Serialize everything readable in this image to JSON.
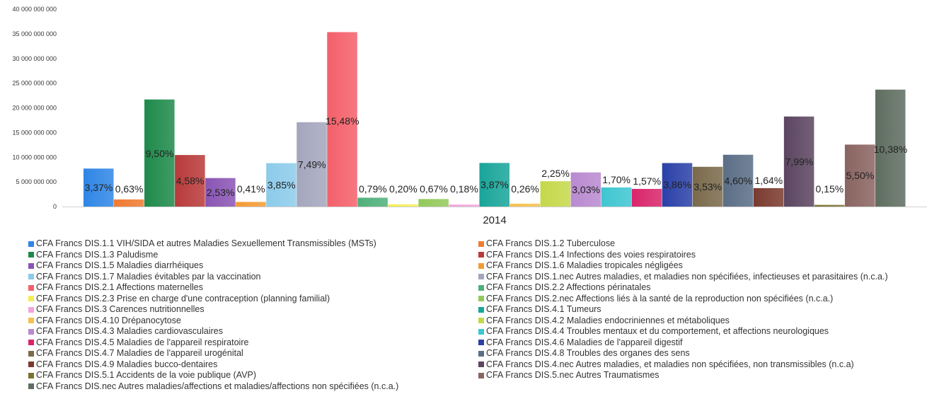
{
  "chart_data": {
    "type": "bar",
    "categories": [
      "2014"
    ],
    "ylim": [
      0,
      40000000000
    ],
    "yticks": [
      "0",
      "5 000 000 000",
      "10 000 000 000",
      "15 000 000 000",
      "20 000 000 000",
      "25 000 000 000",
      "30 000 000 000",
      "35 000 000 000",
      "40 000 000 000"
    ],
    "grid": false,
    "legend_position": "bottom",
    "series": [
      {
        "name": "CFA Francs DIS.1.1 VIH/SIDA et autres Maladies Sexuellement Transmissibles (MSTs)",
        "values": [
          7700000000
        ],
        "label": "3,37%",
        "color": "#2f86e6"
      },
      {
        "name": "CFA Francs DIS.1.2 Tuberculose",
        "values": [
          1450000000
        ],
        "label": "0,63%",
        "color": "#ef7b32"
      },
      {
        "name": "CFA Francs DIS.1.3 Paludisme",
        "values": [
          21700000000
        ],
        "label": "9,50%",
        "color": "#1e8a4a"
      },
      {
        "name": "CFA Francs DIS.1.4 Infections des voies respiratoires",
        "values": [
          10450000000
        ],
        "label": "4,58%",
        "color": "#b93a3a"
      },
      {
        "name": "CFA Francs DIS.1.5 Maladies diarrhéiques",
        "values": [
          5780000000
        ],
        "label": "2,53%",
        "color": "#8a55b4"
      },
      {
        "name": "CFA Francs DIS.1.6 Maladies tropicales négligées",
        "values": [
          940000000
        ],
        "label": "0,41%",
        "color": "#f29b35"
      },
      {
        "name": "CFA Francs DIS.1.7 Maladies évitables par la vaccination",
        "values": [
          8800000000
        ],
        "label": "3,85%",
        "color": "#8ccbea"
      },
      {
        "name": "CFA Francs DIS.1.nec Autres maladies, et maladies non spécifiées, infectieuses et parasitaires (n.c.a.)",
        "values": [
          17100000000
        ],
        "label": "7,49%",
        "color": "#a4a6bd"
      },
      {
        "name": "CFA Francs DIS.2.1 Affections maternelles",
        "values": [
          35350000000
        ],
        "label": "15,48%",
        "color": "#f4606a"
      },
      {
        "name": "CFA Francs DIS.2.2 Affections périnatales",
        "values": [
          1800000000
        ],
        "label": "0,79%",
        "color": "#4fb07a"
      },
      {
        "name": "CFA Francs DIS.2.3 Prise en charge d'une contraception (planning familial)",
        "values": [
          460000000
        ],
        "label": "0,20%",
        "color": "#f4ee55"
      },
      {
        "name": "CFA Francs DIS.2.nec Affections liés à la santé de la reproduction non spécifiées (n.c.a.)",
        "values": [
          1530000000
        ],
        "label": "0,67%",
        "color": "#94c95a"
      },
      {
        "name": "CFA Francs DIS.3 Carences nutritionnelles",
        "values": [
          410000000
        ],
        "label": "0,18%",
        "color": "#f4a3de"
      },
      {
        "name": "CFA Francs DIS.4.1 Tumeurs",
        "values": [
          8840000000
        ],
        "label": "3,87%",
        "color": "#19a59a"
      },
      {
        "name": "CFA Francs DIS.4.10 Drépanocytose",
        "values": [
          590000000
        ],
        "label": "0,26%",
        "color": "#f4c14e"
      },
      {
        "name": "CFA Francs DIS.4.2 Maladies endocriniennes et métaboliques",
        "values": [
          5140000000
        ],
        "label": "2,25%",
        "color": "#c5d84a"
      },
      {
        "name": "CFA Francs DIS.4.3 Maladies cardiovasculaires",
        "values": [
          6920000000
        ],
        "label": "3,03%",
        "color": "#b98ad0"
      },
      {
        "name": "CFA Francs DIS.4.4 Troubles mentaux et du comportement, et affections neurologiques",
        "values": [
          3880000000
        ],
        "label": "1,70%",
        "color": "#3ec6d1"
      },
      {
        "name": "CFA Francs DIS.4.5 Maladies de l'appareil respiratoire",
        "values": [
          3580000000
        ],
        "label": "1,57%",
        "color": "#d9246a"
      },
      {
        "name": "CFA Francs DIS.4.6 Maladies de l'appareil digestif",
        "values": [
          8820000000
        ],
        "label": "3,86%",
        "color": "#2a40a8"
      },
      {
        "name": "CFA Francs DIS.4.7 Maladies de l'appareil urogénital",
        "values": [
          8060000000
        ],
        "label": "3,53%",
        "color": "#7a6a4a"
      },
      {
        "name": "CFA Francs DIS.4.8 Troubles des organes des sens",
        "values": [
          10500000000
        ],
        "label": "4,60%",
        "color": "#5a6e86"
      },
      {
        "name": "CFA Francs DIS.4.9 Maladies bucco-dentaires",
        "values": [
          3740000000
        ],
        "label": "1,64%",
        "color": "#7a3a2e"
      },
      {
        "name": "CFA Francs DIS.4.nec Autres maladies, et maladies non spécifiées, non transmissibles (n.c.a)",
        "values": [
          18250000000
        ],
        "label": "7,99%",
        "color": "#5b4560"
      },
      {
        "name": "CFA Francs DIS.5.1 Accidents de la voie publique (AVP)",
        "values": [
          340000000
        ],
        "label": "0,15%",
        "color": "#7a7230"
      },
      {
        "name": "CFA Francs DIS.5.nec Autres Traumatismes",
        "values": [
          12560000000
        ],
        "label": "5,50%",
        "color": "#8a6461"
      },
      {
        "name": "CFA Francs DIS.nec Autres maladies/affections et maladies/affections non spécifiées (n.c.a.)",
        "values": [
          23700000000
        ],
        "label": "10,38%",
        "color": "#5f6d60"
      }
    ]
  }
}
